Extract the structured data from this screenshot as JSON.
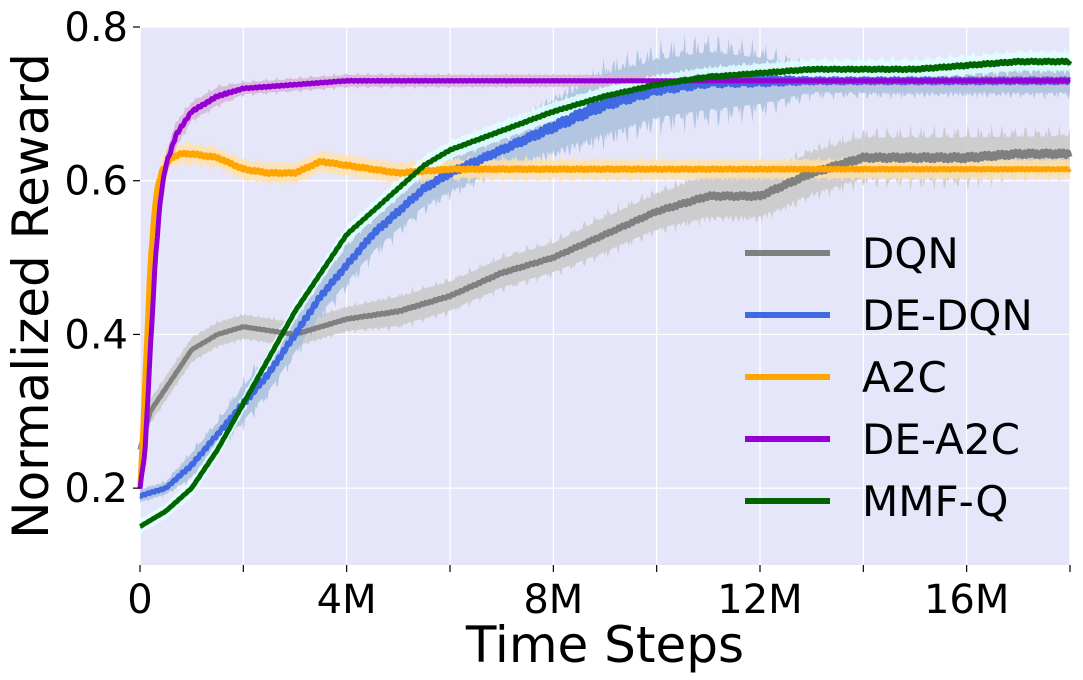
{
  "chart_data": {
    "type": "line",
    "title": "",
    "xlabel": "Time Steps",
    "ylabel": "Normalized Reward",
    "xlim": [
      0,
      18000000
    ],
    "ylim": [
      0.1,
      0.8
    ],
    "x_ticks": [
      0,
      4000000,
      8000000,
      12000000,
      16000000
    ],
    "x_tick_labels": [
      "0",
      "4M",
      "8M",
      "12M",
      "16M"
    ],
    "x_minor_ticks": [
      2000000,
      6000000,
      10000000,
      14000000,
      18000000
    ],
    "y_ticks": [
      0.2,
      0.4,
      0.6,
      0.8
    ],
    "y_tick_labels": [
      "0.2",
      "0.4",
      "0.6",
      "0.8"
    ],
    "grid": true,
    "background_color": "#e6e6fa",
    "legend_position": "lower-right",
    "series": [
      {
        "name": "DQN",
        "color": "#808080",
        "band_color": "#c8c8c8",
        "x": [
          0,
          200000,
          500000,
          1000000,
          1500000,
          2000000,
          3000000,
          4000000,
          5000000,
          6000000,
          7000000,
          8000000,
          9000000,
          10000000,
          11000000,
          12000000,
          13000000,
          14000000,
          15000000,
          16000000,
          17000000,
          18000000
        ],
        "y": [
          0.25,
          0.3,
          0.33,
          0.38,
          0.4,
          0.41,
          0.4,
          0.42,
          0.43,
          0.45,
          0.48,
          0.5,
          0.53,
          0.56,
          0.58,
          0.58,
          0.61,
          0.63,
          0.63,
          0.63,
          0.635,
          0.635
        ],
        "band": [
          0.02,
          0.02,
          0.02,
          0.02,
          0.02,
          0.02,
          0.02,
          0.02,
          0.025,
          0.025,
          0.025,
          0.025,
          0.03,
          0.03,
          0.035,
          0.035,
          0.035,
          0.035,
          0.035,
          0.035,
          0.03,
          0.03
        ]
      },
      {
        "name": "DE-DQN",
        "color": "#4169e1",
        "band_color": "#a9bfdc",
        "x": [
          0,
          500000,
          1000000,
          1500000,
          2000000,
          2500000,
          3000000,
          3500000,
          4000000,
          4500000,
          5000000,
          5500000,
          6000000,
          7000000,
          8000000,
          9000000,
          10000000,
          11000000,
          12000000,
          13000000,
          14000000,
          15000000,
          16000000,
          17000000,
          18000000
        ],
        "y": [
          0.19,
          0.2,
          0.23,
          0.27,
          0.31,
          0.35,
          0.4,
          0.45,
          0.49,
          0.53,
          0.56,
          0.59,
          0.61,
          0.64,
          0.67,
          0.7,
          0.72,
          0.73,
          0.73,
          0.73,
          0.73,
          0.73,
          0.73,
          0.73,
          0.73
        ],
        "band": [
          0.01,
          0.01,
          0.02,
          0.02,
          0.03,
          0.03,
          0.03,
          0.03,
          0.03,
          0.03,
          0.03,
          0.03,
          0.03,
          0.03,
          0.04,
          0.05,
          0.05,
          0.05,
          0.04,
          0.02,
          0.02,
          0.02,
          0.02,
          0.02,
          0.02
        ]
      },
      {
        "name": "A2C",
        "color": "#ffa500",
        "band_color": "#ffe0a8",
        "x": [
          0,
          100000,
          200000,
          300000,
          400000,
          600000,
          800000,
          1000000,
          1500000,
          2000000,
          2500000,
          3000000,
          3500000,
          4000000,
          4500000,
          5000000,
          6000000,
          8000000,
          10000000,
          12000000,
          14000000,
          16000000,
          18000000
        ],
        "y": [
          0.2,
          0.35,
          0.5,
          0.58,
          0.61,
          0.63,
          0.635,
          0.635,
          0.63,
          0.615,
          0.61,
          0.61,
          0.625,
          0.62,
          0.615,
          0.61,
          0.615,
          0.615,
          0.615,
          0.615,
          0.615,
          0.615,
          0.615
        ],
        "band": [
          0.01,
          0.02,
          0.02,
          0.02,
          0.02,
          0.015,
          0.015,
          0.015,
          0.015,
          0.015,
          0.015,
          0.015,
          0.015,
          0.015,
          0.015,
          0.015,
          0.015,
          0.015,
          0.015,
          0.015,
          0.015,
          0.015,
          0.015
        ]
      },
      {
        "name": "DE-A2C",
        "color": "#9400d3",
        "band_color": "#d6b4d6",
        "x": [
          0,
          100000,
          200000,
          300000,
          400000,
          500000,
          700000,
          1000000,
          1500000,
          2000000,
          3000000,
          4000000,
          6000000,
          8000000,
          10000000,
          12000000,
          14000000,
          16000000,
          18000000
        ],
        "y": [
          0.2,
          0.25,
          0.38,
          0.5,
          0.58,
          0.62,
          0.66,
          0.69,
          0.71,
          0.72,
          0.725,
          0.73,
          0.73,
          0.73,
          0.73,
          0.73,
          0.73,
          0.73,
          0.73
        ],
        "band": [
          0.01,
          0.02,
          0.02,
          0.02,
          0.02,
          0.02,
          0.02,
          0.015,
          0.015,
          0.01,
          0.01,
          0.01,
          0.01,
          0.01,
          0.01,
          0.01,
          0.01,
          0.01,
          0.01
        ]
      },
      {
        "name": "MMF-Q",
        "color": "#006400",
        "band_color": "#e0ffff",
        "x": [
          0,
          500000,
          1000000,
          1500000,
          2000000,
          2500000,
          3000000,
          3500000,
          4000000,
          4500000,
          5000000,
          5500000,
          6000000,
          7000000,
          8000000,
          9000000,
          10000000,
          11000000,
          12000000,
          13000000,
          14000000,
          15000000,
          16000000,
          17000000,
          18000000
        ],
        "y": [
          0.15,
          0.17,
          0.2,
          0.25,
          0.31,
          0.37,
          0.43,
          0.48,
          0.53,
          0.56,
          0.59,
          0.62,
          0.64,
          0.665,
          0.69,
          0.71,
          0.725,
          0.735,
          0.74,
          0.745,
          0.745,
          0.745,
          0.75,
          0.755,
          0.755
        ],
        "band": [
          0.012,
          0.012,
          0.015,
          0.015,
          0.015,
          0.015,
          0.015,
          0.015,
          0.015,
          0.015,
          0.015,
          0.015,
          0.015,
          0.015,
          0.015,
          0.015,
          0.015,
          0.015,
          0.015,
          0.015,
          0.015,
          0.015,
          0.015,
          0.015,
          0.015
        ]
      }
    ]
  }
}
